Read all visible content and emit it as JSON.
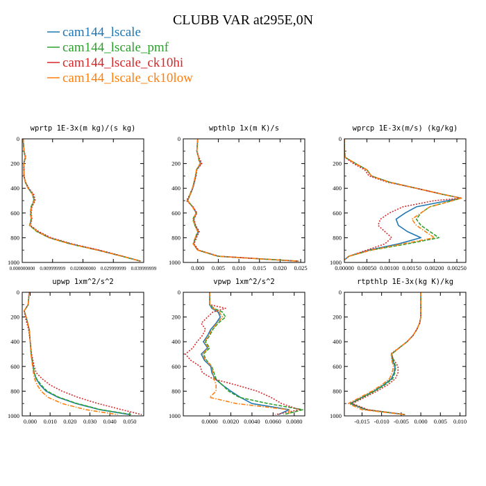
{
  "title": "CLUBB VAR at295E,0N",
  "legend": [
    {
      "name": "cam144_lscale",
      "color": "#1f77b4",
      "dash": "solid"
    },
    {
      "name": "cam144_lscale_pmf",
      "color": "#2ca02c",
      "dash": "dashed"
    },
    {
      "name": "cam144_lscale_ck10hi",
      "color": "#d62728",
      "dash": "dotted"
    },
    {
      "name": "cam144_lscale_ck10low",
      "color": "#ff7f0e",
      "dash": "dashdot"
    }
  ],
  "chart_data": [
    {
      "type": "line",
      "title": "wprtp  1E-3x(m kg)/(s kg)",
      "xlim": [
        0,
        0.04
      ],
      "ylim": [
        1000,
        0
      ],
      "xticks": [
        0,
        0.01,
        0.02,
        0.03,
        0.04
      ],
      "xtick_labels": [
        "0.000000000",
        "0.009999999",
        "0.020000000",
        "0.029999999",
        "0.039999999"
      ],
      "yticks": [
        0,
        200,
        400,
        600,
        800,
        1000
      ],
      "y": [
        0,
        100,
        150,
        200,
        300,
        350,
        400,
        450,
        500,
        550,
        600,
        650,
        700,
        750,
        800,
        850,
        900,
        950,
        990
      ],
      "series": [
        {
          "name": "cam144_lscale",
          "values": [
            0.0003,
            0.0006,
            0.001,
            0.0005,
            0.0006,
            0.001,
            0.002,
            0.0035,
            0.004,
            0.003,
            0.0028,
            0.003,
            0.0025,
            0.005,
            0.009,
            0.016,
            0.025,
            0.033,
            0.039
          ]
        },
        {
          "name": "cam144_lscale_pmf",
          "values": [
            0.0003,
            0.0006,
            0.001,
            0.0005,
            0.0006,
            0.001,
            0.002,
            0.0034,
            0.0038,
            0.0029,
            0.0027,
            0.0029,
            0.0024,
            0.0048,
            0.0088,
            0.0157,
            0.0247,
            0.0328,
            0.039
          ]
        },
        {
          "name": "cam144_lscale_ck10hi",
          "values": [
            0.0003,
            0.0006,
            0.0012,
            0.0005,
            0.0006,
            0.0011,
            0.0022,
            0.0038,
            0.0043,
            0.0032,
            0.003,
            0.0032,
            0.0027,
            0.0054,
            0.0095,
            0.0165,
            0.0253,
            0.0332,
            0.039
          ]
        },
        {
          "name": "cam144_lscale_ck10low",
          "values": [
            0.0003,
            0.0006,
            0.001,
            0.0005,
            0.0006,
            0.001,
            0.0019,
            0.0034,
            0.004,
            0.003,
            0.0028,
            0.003,
            0.0025,
            0.005,
            0.0089,
            0.0158,
            0.0248,
            0.033,
            0.039
          ]
        }
      ]
    },
    {
      "type": "line",
      "title": "wpthlp  1x(m K)/s",
      "xlim": [
        -0.0035,
        0.026
      ],
      "ylim": [
        1000,
        0
      ],
      "xticks": [
        0,
        0.005,
        0.01,
        0.015,
        0.02,
        0.025
      ],
      "xtick_labels": [
        "0.000",
        "0.005",
        "0.010",
        "0.015",
        "0.020",
        "0.025"
      ],
      "yticks": [
        0,
        200,
        400,
        600,
        800,
        1000
      ],
      "y": [
        0,
        100,
        150,
        170,
        200,
        250,
        300,
        350,
        400,
        450,
        500,
        550,
        600,
        650,
        700,
        750,
        800,
        850,
        900,
        950,
        990
      ],
      "series": [
        {
          "name": "cam144_lscale",
          "values": [
            0,
            -0.0002,
            0.0002,
            0.0003,
            0.0008,
            -0.0003,
            -0.0005,
            -0.0008,
            -0.0012,
            -0.0018,
            -0.0025,
            -0.0012,
            -0.0003,
            -0.001,
            -0.0006,
            0.0002,
            -0.0005,
            -0.001,
            0.0,
            0.005,
            0.0245
          ]
        },
        {
          "name": "cam144_lscale_pmf",
          "values": [
            0,
            -0.0002,
            0.0002,
            0.0003,
            0.0006,
            -0.0003,
            -0.0005,
            -0.0009,
            -0.0013,
            -0.0019,
            -0.0024,
            -0.0013,
            -0.0004,
            -0.0012,
            -0.0007,
            0.0,
            -0.0006,
            -0.0011,
            0.0,
            0.0048,
            0.0245
          ]
        },
        {
          "name": "cam144_lscale_ck10hi",
          "values": [
            0,
            -0.0002,
            0.0003,
            0.0006,
            0.001,
            -0.0002,
            -0.0004,
            -0.0008,
            -0.0012,
            -0.0019,
            -0.0027,
            -0.0011,
            -0.0002,
            -0.0009,
            -0.0005,
            0.0004,
            -0.0003,
            -0.0009,
            0.0002,
            0.0052,
            0.0245
          ]
        },
        {
          "name": "cam144_lscale_ck10low",
          "values": [
            0,
            -0.0002,
            0.0002,
            0.0002,
            0.0006,
            -0.0003,
            -0.0006,
            -0.0009,
            -0.0013,
            -0.0018,
            -0.0024,
            -0.0013,
            -0.0004,
            -0.0011,
            -0.0007,
            0.0,
            -0.0006,
            -0.0011,
            0.0,
            0.0049,
            0.0245
          ]
        }
      ]
    },
    {
      "type": "line",
      "title": "wprcp  1E-3x(m/s) (kg/kg)",
      "xlim": [
        0,
        0.0027
      ],
      "ylim": [
        1000,
        0
      ],
      "xticks": [
        0,
        0.0005,
        0.001,
        0.0015,
        0.002,
        0.0025
      ],
      "xtick_labels": [
        "0.00000",
        "0.00050",
        "0.00100",
        "0.00150",
        "0.00200",
        "0.00250"
      ],
      "yticks": [
        0,
        200,
        400,
        600,
        800,
        1000
      ],
      "y": [
        0,
        100,
        150,
        200,
        250,
        300,
        350,
        400,
        450,
        480,
        500,
        550,
        600,
        650,
        700,
        750,
        800,
        850,
        900,
        950,
        980
      ],
      "series": [
        {
          "name": "cam144_lscale",
          "values": [
            0,
            0,
            2e-05,
            0.00025,
            0.0005,
            0.0006,
            0.001,
            0.0016,
            0.0022,
            0.0026,
            0.0023,
            0.0016,
            0.00135,
            0.00115,
            0.0012,
            0.0014,
            0.0017,
            0.0012,
            0.00055,
            0.0001,
            0
          ]
        },
        {
          "name": "cam144_lscale_pmf",
          "values": [
            0,
            0,
            2e-05,
            0.00025,
            0.0005,
            0.0006,
            0.001,
            0.0016,
            0.0022,
            0.0026,
            0.0024,
            0.0019,
            0.0017,
            0.0016,
            0.0017,
            0.0019,
            0.0021,
            0.0014,
            0.0006,
            0.0001,
            0
          ]
        },
        {
          "name": "cam144_lscale_ck10hi",
          "values": [
            0,
            0,
            2e-05,
            0.0002,
            0.00045,
            0.00055,
            0.00095,
            0.0016,
            0.0022,
            0.0026,
            0.002,
            0.0013,
            0.001,
            0.0008,
            0.00075,
            0.0009,
            0.00105,
            0.0009,
            0.0005,
            0.0001,
            0
          ]
        },
        {
          "name": "cam144_lscale_ck10low",
          "values": [
            0,
            0,
            2e-05,
            0.00025,
            0.0005,
            0.0006,
            0.001,
            0.0016,
            0.0022,
            0.0026,
            0.0024,
            0.0019,
            0.0017,
            0.0015,
            0.0016,
            0.0018,
            0.002,
            0.0013,
            0.0006,
            0.0001,
            0
          ]
        }
      ]
    },
    {
      "type": "line",
      "title": "upwp  1xm^2/s^2",
      "xlim": [
        -0.004,
        0.057
      ],
      "ylim": [
        1000,
        0
      ],
      "xticks": [
        0,
        0.01,
        0.02,
        0.03,
        0.04,
        0.05
      ],
      "xtick_labels": [
        "0.000",
        "0.010",
        "0.020",
        "0.030",
        "0.040",
        "0.050"
      ],
      "yticks": [
        0,
        200,
        400,
        600,
        800,
        1000
      ],
      "y": [
        0,
        100,
        150,
        200,
        300,
        400,
        500,
        600,
        650,
        700,
        750,
        800,
        850,
        900,
        950,
        990
      ],
      "series": [
        {
          "name": "cam144_lscale",
          "values": [
            -0.0005,
            -0.001,
            -0.003,
            -0.002,
            -0.0005,
            0,
            0.0005,
            0.0015,
            0.002,
            0.003,
            0.005,
            0.008,
            0.014,
            0.023,
            0.035,
            0.05
          ]
        },
        {
          "name": "cam144_lscale_pmf",
          "values": [
            -0.0005,
            -0.001,
            -0.003,
            -0.002,
            -0.0005,
            0,
            0.0005,
            0.0015,
            0.002,
            0.0032,
            0.0055,
            0.0085,
            0.0145,
            0.0235,
            0.0355,
            0.051
          ]
        },
        {
          "name": "cam144_lscale_ck10hi",
          "values": [
            -0.0005,
            -0.001,
            -0.003,
            -0.0025,
            -0.0008,
            0,
            0.0007,
            0.002,
            0.003,
            0.006,
            0.01,
            0.016,
            0.024,
            0.034,
            0.046,
            0.056
          ]
        },
        {
          "name": "cam144_lscale_ck10low",
          "values": [
            -0.0005,
            -0.001,
            -0.003,
            -0.002,
            -0.0004,
            0,
            0.0004,
            0.0012,
            0.0016,
            0.0022,
            0.0035,
            0.0055,
            0.009,
            0.016,
            0.028,
            0.044
          ]
        }
      ]
    },
    {
      "type": "line",
      "title": "vpwp  1xm^2/s^2",
      "xlim": [
        -0.0025,
        0.009
      ],
      "ylim": [
        1000,
        0
      ],
      "xticks": [
        0,
        0.002,
        0.004,
        0.006,
        0.008
      ],
      "xtick_labels": [
        "0.0000",
        "0.0020",
        "0.0040",
        "0.0060",
        "0.0080"
      ],
      "yticks": [
        0,
        200,
        400,
        600,
        800,
        1000
      ],
      "y": [
        0,
        100,
        130,
        160,
        200,
        250,
        300,
        350,
        400,
        450,
        500,
        550,
        600,
        650,
        700,
        750,
        800,
        850,
        900,
        950,
        990
      ],
      "series": [
        {
          "name": "cam144_lscale",
          "values": [
            0,
            0,
            0.0002,
            0.0008,
            0.001,
            0.0006,
            0.0001,
            -0.0002,
            -0.0006,
            -0.0002,
            -0.0008,
            -0.0005,
            0.0001,
            0.0002,
            0.0005,
            0.0012,
            0.002,
            0.0029,
            0.004,
            0.0075,
            0.0065
          ]
        },
        {
          "name": "cam144_lscale_pmf",
          "values": [
            0,
            0,
            0.0004,
            0.0012,
            0.0015,
            0.0008,
            0.0003,
            0.0,
            -0.0004,
            0.0,
            -0.0006,
            -0.0003,
            0.0002,
            0.0004,
            0.0006,
            0.0012,
            0.0018,
            0.0028,
            0.0055,
            0.0088,
            0.007
          ]
        },
        {
          "name": "cam144_lscale_ck10hi",
          "values": [
            0,
            0,
            0.0015,
            0.0003,
            -0.0002,
            -0.0008,
            -0.0004,
            -0.0007,
            -0.0012,
            -0.0016,
            -0.0023,
            -0.0018,
            -0.0009,
            -0.0007,
            0.0003,
            0.0025,
            0.0045,
            0.0058,
            0.0068,
            0.0085,
            0.0062
          ]
        },
        {
          "name": "cam144_lscale_ck10low",
          "values": [
            0,
            0,
            0.0003,
            0.0009,
            0.0012,
            0.0007,
            0.0002,
            -0.0001,
            -0.0005,
            -0.0001,
            -0.0007,
            -0.0004,
            0.0002,
            0.0003,
            0.0004,
            0.0006,
            0.0006,
            0.0,
            0.0025,
            0.0075,
            0.0075
          ]
        }
      ]
    },
    {
      "type": "line",
      "title": "rtpthlp  1E-3x(kg K)/kg",
      "xlim": [
        -0.0195,
        0.0115
      ],
      "ylim": [
        1000,
        0
      ],
      "xticks": [
        -0.015,
        -0.01,
        -0.005,
        0,
        0.005,
        0.01
      ],
      "xtick_labels": [
        "-0.015",
        "-0.010",
        "-0.005",
        "0.000",
        "0.005",
        "0.010"
      ],
      "yticks": [
        0,
        200,
        400,
        600,
        800,
        1000
      ],
      "y": [
        0,
        100,
        200,
        250,
        300,
        350,
        400,
        450,
        500,
        550,
        600,
        650,
        700,
        750,
        800,
        850,
        900,
        950,
        990
      ],
      "series": [
        {
          "name": "cam144_lscale",
          "values": [
            0,
            0,
            0,
            -0.0003,
            -0.001,
            -0.002,
            -0.0035,
            -0.0055,
            -0.0075,
            -0.0072,
            -0.0066,
            -0.0068,
            -0.0075,
            -0.0095,
            -0.012,
            -0.015,
            -0.018,
            -0.014,
            -0.004
          ]
        },
        {
          "name": "cam144_lscale_pmf",
          "values": [
            0,
            0,
            0,
            -0.0003,
            -0.001,
            -0.002,
            -0.0035,
            -0.0055,
            -0.0074,
            -0.007,
            -0.0064,
            -0.0066,
            -0.0072,
            -0.0092,
            -0.0118,
            -0.0148,
            -0.0178,
            -0.0138,
            -0.004
          ]
        },
        {
          "name": "cam144_lscale_ck10hi",
          "values": [
            0,
            0,
            0,
            -0.0003,
            -0.001,
            -0.002,
            -0.0035,
            -0.0056,
            -0.0077,
            -0.0068,
            -0.0058,
            -0.0058,
            -0.0065,
            -0.0085,
            -0.0112,
            -0.0143,
            -0.0175,
            -0.0135,
            -0.004
          ]
        },
        {
          "name": "cam144_lscale_ck10low",
          "values": [
            0,
            0,
            0,
            -0.0003,
            -0.001,
            -0.002,
            -0.0035,
            -0.0055,
            -0.0075,
            -0.0074,
            -0.007,
            -0.0073,
            -0.008,
            -0.01,
            -0.0125,
            -0.0155,
            -0.0185,
            -0.015,
            -0.004
          ]
        }
      ]
    }
  ]
}
